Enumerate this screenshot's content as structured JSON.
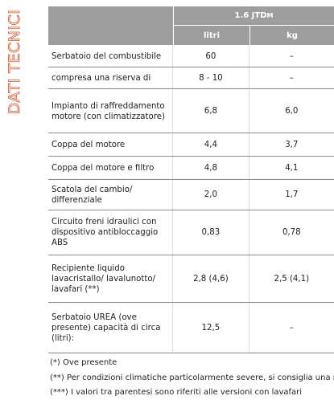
{
  "side_title": "DATI TECNICI",
  "header": {
    "engine": "1.6 JTD",
    "engine_sub": "M",
    "col_litri": "litri",
    "col_kg": "kg"
  },
  "table": {
    "rows": [
      [
        "Serbatoio del combustibile",
        "60",
        "–"
      ],
      [
        "compresa una riserva di",
        "8 - 10",
        "–"
      ],
      [
        "Impianto di raffreddamento motore (con climatizzatore)",
        "6,8",
        "6,0"
      ],
      [
        "Coppa del motore",
        "4,4",
        "3,7"
      ],
      [
        "Coppa del motore e filtro",
        "4,8",
        "4,1"
      ],
      [
        "Scatola del cambio/ differenziale",
        "2,0",
        "1,7"
      ],
      [
        "Circuito freni idraulici con dispositivo antibloccaggio ABS",
        "0,83",
        "0,78"
      ],
      [
        "Recipiente liquido lavacristallo/ lavalunotto/ lavafari (**)",
        "2,8 (4,6)",
        "2,5 (4,1)"
      ],
      [
        "Serbatoio UREA (ove presente) capacità di circa (litri):",
        "12,5",
        "–"
      ]
    ]
  },
  "notes": [
    "(*) Ove presente",
    "(**) Per condizioni climatiche particolarmente severe, si consiglia una misce",
    "(***) I valori tra parentesi sono riferiti alle versioni con lavafari"
  ]
}
